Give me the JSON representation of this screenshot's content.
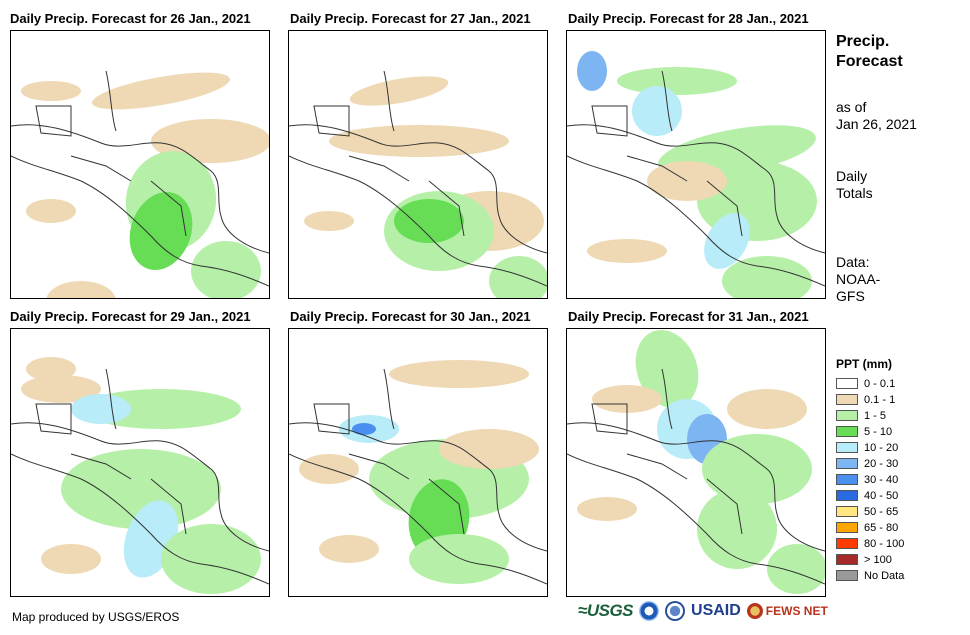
{
  "panels": [
    {
      "title": "Daily Precip. Forecast for 26 Jan., 2021",
      "date": "26 Jan., 2021"
    },
    {
      "title": "Daily Precip. Forecast for 27 Jan., 2021",
      "date": "27 Jan., 2021"
    },
    {
      "title": "Daily Precip. Forecast for 28 Jan., 2021",
      "date": "28 Jan., 2021"
    },
    {
      "title": "Daily Precip. Forecast for 29 Jan., 2021",
      "date": "29 Jan., 2021"
    },
    {
      "title": "Daily Precip. Forecast for 30 Jan., 2021",
      "date": "30 Jan., 2021"
    },
    {
      "title": "Daily Precip. Forecast for 31 Jan., 2021",
      "date": "31 Jan., 2021"
    }
  ],
  "sidebar": {
    "title_line1": "Precip.",
    "title_line2": "Forecast",
    "asof_line1": "as of",
    "asof_line2": "Jan 26, 2021",
    "totals_line1": "Daily",
    "totals_line2": "Totals",
    "source_line1": "Data:",
    "source_line2": "NOAA-",
    "source_line3": "GFS"
  },
  "legend": {
    "title": "PPT (mm)",
    "items": [
      {
        "label": "0 - 0.1",
        "color": "#ffffff"
      },
      {
        "label": "0.1 - 1",
        "color": "#eed9b4"
      },
      {
        "label": "1 - 5",
        "color": "#b6f0a8"
      },
      {
        "label": "5 - 10",
        "color": "#66dd55"
      },
      {
        "label": "10 - 20",
        "color": "#b7ecf8"
      },
      {
        "label": "20 - 30",
        "color": "#7db4f2"
      },
      {
        "label": "30 - 40",
        "color": "#4a8ef0"
      },
      {
        "label": "40 - 50",
        "color": "#2a6ae0"
      },
      {
        "label": "50 - 65",
        "color": "#ffe680"
      },
      {
        "label": "65 - 80",
        "color": "#ffa500"
      },
      {
        "label": "80 - 100",
        "color": "#ff3b00"
      },
      {
        "label": "> 100",
        "color": "#a52a2a"
      },
      {
        "label": "No Data",
        "color": "#999999"
      }
    ]
  },
  "footer": {
    "credit": "Map produced by USGS/EROS",
    "logo_usgs": "≈USGS",
    "logo_usaid": "USAID",
    "logo_fews": "FEWS NET"
  }
}
